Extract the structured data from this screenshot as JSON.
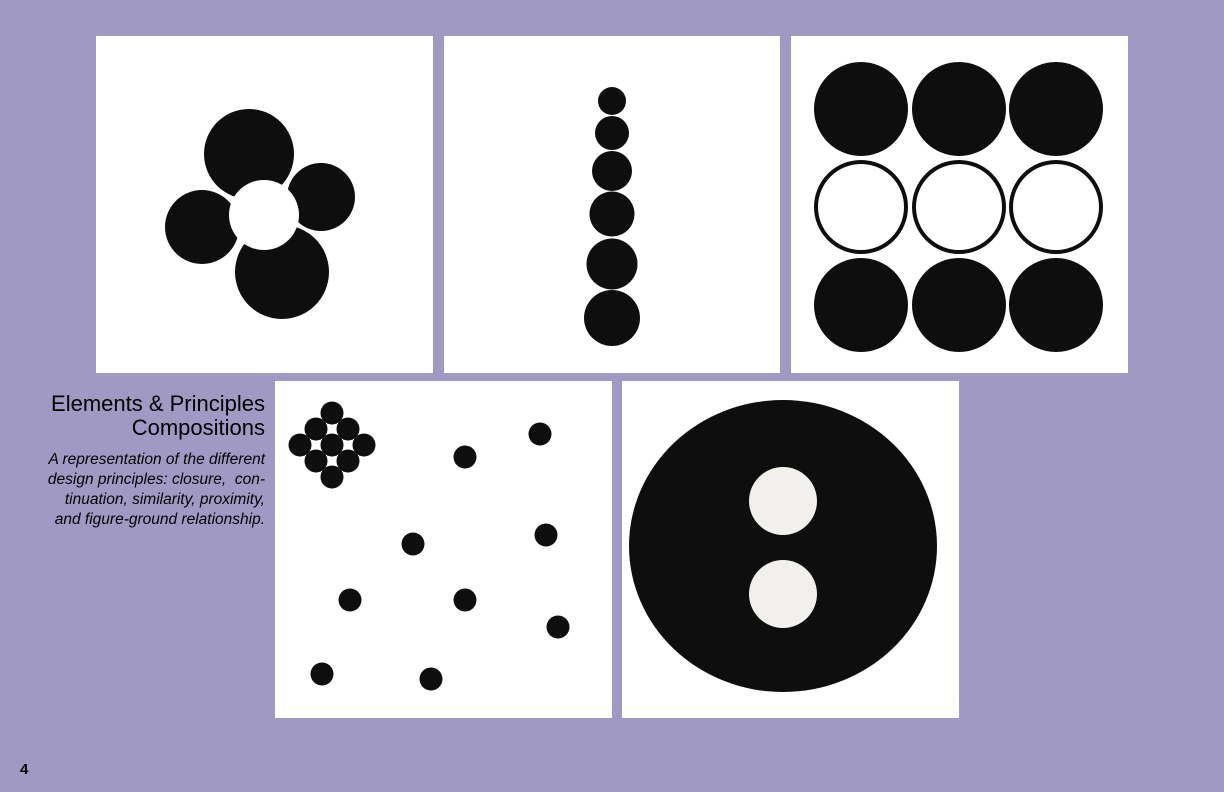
{
  "caption": {
    "title_line1": "Elements & Principles",
    "title_line2": "Compositions",
    "body_line1": "A representation of the different",
    "body_line2": "design principles: closure,  con-",
    "body_line3": "tinuation, similarity, proximity,",
    "body_line4": "and figure-ground relationship."
  },
  "page_number": "4",
  "colors": {
    "background": "#a099c4",
    "panel": "#ffffff",
    "ink": "#0d0e0d",
    "light_circle": "#f1f0ec"
  }
}
